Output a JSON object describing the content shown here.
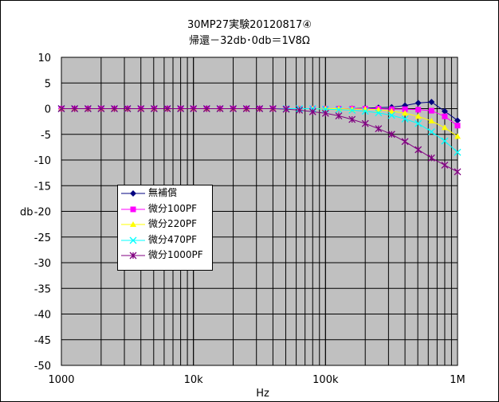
{
  "chart_data": {
    "type": "line",
    "title_lines": [
      "30MP27実験20120817④",
      "帰還－32db･0db＝1V8Ω"
    ],
    "xlabel": "Hz",
    "ylabel": "db",
    "x_scale": "log",
    "xlim": [
      1000,
      1000000
    ],
    "ylim": [
      -50,
      10
    ],
    "x_tick_labels": [
      "1000",
      "10k",
      "100k",
      "1M"
    ],
    "y_tick_labels": [
      "10",
      "5",
      "0",
      "-5",
      "-10",
      "-15",
      "-20",
      "-25",
      "-30",
      "-35",
      "-40",
      "-45",
      "-50"
    ],
    "grid": true,
    "legend_position": "inside-left",
    "x": [
      1000,
      1260,
      1590,
      2000,
      2520,
      3170,
      4000,
      5040,
      6350,
      8000,
      10000,
      12600,
      15900,
      20000,
      25200,
      31700,
      40000,
      50400,
      63500,
      80000,
      100000,
      126000,
      159000,
      200000,
      252000,
      317000,
      400000,
      504000,
      635000,
      800000,
      1000000
    ],
    "series": [
      {
        "name": "無補償",
        "color": "#000080",
        "marker": "diamond",
        "values": [
          0,
          0,
          0,
          0,
          0,
          0,
          0,
          0,
          0,
          0,
          0,
          0,
          0,
          0,
          0,
          0,
          0,
          0,
          0,
          0,
          0,
          0,
          0,
          0.1,
          0.2,
          0.3,
          0.6,
          1.1,
          1.3,
          -0.5,
          -2.3
        ]
      },
      {
        "name": "微分100PF",
        "color": "#ff00ff",
        "marker": "square",
        "values": [
          0,
          0,
          0,
          0,
          0,
          0,
          0,
          0,
          0,
          0,
          0,
          0,
          0,
          0,
          0,
          0,
          0,
          0,
          0,
          0,
          0,
          0,
          0,
          0,
          0,
          -0.1,
          -0.1,
          -0.2,
          -0.4,
          -1.5,
          -3.3
        ]
      },
      {
        "name": "微分220PF",
        "color": "#ffff00",
        "marker": "triangle",
        "values": [
          0,
          0,
          0,
          0,
          0,
          0,
          0,
          0,
          0,
          0,
          0,
          0,
          0,
          0,
          0,
          0,
          0,
          0,
          0,
          0,
          0,
          0,
          -0.1,
          -0.1,
          -0.2,
          -0.5,
          -0.9,
          -1.5,
          -2.4,
          -3.7,
          -5.4
        ]
      },
      {
        "name": "微分470PF",
        "color": "#00ffff",
        "marker": "x",
        "values": [
          0,
          0,
          0,
          0,
          0,
          0,
          0,
          0,
          0,
          0,
          0,
          0,
          0,
          0,
          0,
          0,
          0,
          0,
          0,
          0,
          -0.1,
          -0.2,
          -0.3,
          -0.5,
          -0.8,
          -1.3,
          -2.0,
          -2.9,
          -4.5,
          -6.3,
          -8.5
        ]
      },
      {
        "name": "微分1000PF",
        "color": "#800080",
        "marker": "star",
        "values": [
          0,
          0,
          0,
          0,
          0,
          0,
          0,
          0,
          0,
          0,
          0,
          0,
          0,
          0,
          0,
          0,
          0,
          -0.1,
          -0.3,
          -0.6,
          -0.9,
          -1.4,
          -2.1,
          -2.9,
          -3.9,
          -5.0,
          -6.4,
          -8.0,
          -9.6,
          -11.0,
          -12.3
        ]
      }
    ]
  }
}
